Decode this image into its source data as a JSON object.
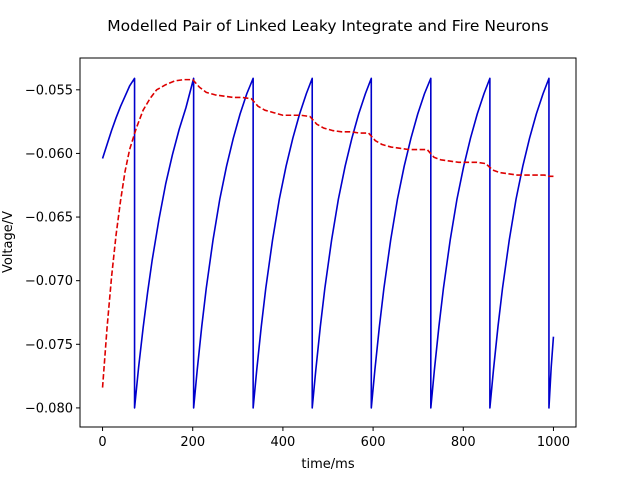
{
  "chart_data": {
    "type": "line",
    "title": "Modelled Pair of Linked Leaky Integrate and Fire Neurons",
    "xlabel": "time/ms",
    "ylabel": "Voltage/V",
    "xlim": [
      -50,
      1050
    ],
    "ylim": [
      -0.0815,
      -0.0525
    ],
    "xticks": [
      0,
      200,
      400,
      600,
      800,
      1000
    ],
    "xtick_labels": [
      "0",
      "200",
      "400",
      "600",
      "800",
      "1000"
    ],
    "yticks": [
      -0.08,
      -0.075,
      -0.07,
      -0.065,
      -0.06,
      -0.055
    ],
    "ytick_labels": [
      "−0.080",
      "−0.075",
      "−0.070",
      "−0.065",
      "−0.060",
      "−0.055"
    ],
    "grid": false,
    "legend": "none",
    "series": [
      {
        "color": "#0000cc",
        "style": "solid",
        "x": [
          0,
          10,
          20,
          30,
          40,
          50,
          60,
          71,
          71.01,
          80,
          90,
          100,
          110,
          125,
          140,
          155,
          170,
          185,
          202,
          202.01,
          210,
          220,
          230,
          245,
          260,
          275,
          290,
          305,
          320,
          334,
          334.01,
          342,
          352,
          362,
          377,
          392,
          407,
          422,
          437,
          452,
          465,
          465.01,
          473,
          483,
          493,
          508,
          523,
          538,
          553,
          568,
          583,
          596,
          596.01,
          604,
          614,
          624,
          639,
          654,
          669,
          684,
          699,
          714,
          728,
          728.01,
          736,
          746,
          756,
          771,
          786,
          801,
          816,
          831,
          846,
          859,
          859.01,
          867,
          877,
          887,
          902,
          917,
          932,
          947,
          962,
          977,
          990,
          990.01,
          995,
          1000
        ],
        "y": [
          -0.0604,
          -0.0593,
          -0.0582,
          -0.0572,
          -0.0563,
          -0.0555,
          -0.0547,
          -0.0541,
          -0.08,
          -0.0768,
          -0.0737,
          -0.0709,
          -0.0684,
          -0.0652,
          -0.0624,
          -0.0601,
          -0.0581,
          -0.0564,
          -0.0541,
          -0.08,
          -0.077,
          -0.0736,
          -0.0706,
          -0.0668,
          -0.0636,
          -0.061,
          -0.0588,
          -0.0569,
          -0.0553,
          -0.0541,
          -0.08,
          -0.077,
          -0.0736,
          -0.0706,
          -0.0668,
          -0.0636,
          -0.061,
          -0.0588,
          -0.0569,
          -0.0553,
          -0.0541,
          -0.08,
          -0.077,
          -0.0736,
          -0.0706,
          -0.0668,
          -0.0636,
          -0.061,
          -0.0588,
          -0.0569,
          -0.0553,
          -0.0541,
          -0.08,
          -0.077,
          -0.0736,
          -0.0706,
          -0.0668,
          -0.0636,
          -0.061,
          -0.0588,
          -0.0569,
          -0.0553,
          -0.0541,
          -0.08,
          -0.077,
          -0.0736,
          -0.0706,
          -0.0668,
          -0.0636,
          -0.061,
          -0.0588,
          -0.0569,
          -0.0553,
          -0.0541,
          -0.08,
          -0.077,
          -0.0736,
          -0.0706,
          -0.0668,
          -0.0636,
          -0.061,
          -0.0588,
          -0.0569,
          -0.0553,
          -0.0541,
          -0.08,
          -0.0768,
          -0.0744
        ]
      },
      {
        "color": "#dd0000",
        "style": "dashed",
        "x": [
          0,
          10,
          20,
          30,
          40,
          50,
          60,
          75,
          90,
          105,
          120,
          140,
          160,
          180,
          200,
          215,
          230,
          250,
          270,
          290,
          310,
          330,
          345,
          360,
          380,
          400,
          420,
          440,
          460,
          475,
          490,
          510,
          530,
          550,
          570,
          590,
          605,
          620,
          640,
          660,
          680,
          700,
          720,
          735,
          750,
          770,
          790,
          810,
          830,
          850,
          865,
          880,
          900,
          920,
          940,
          960,
          980,
          990,
          1000
        ],
        "y": [
          -0.0784,
          -0.0737,
          -0.0697,
          -0.0664,
          -0.0637,
          -0.0614,
          -0.0597,
          -0.058,
          -0.0566,
          -0.0557,
          -0.055,
          -0.0546,
          -0.0543,
          -0.0542,
          -0.0542,
          -0.0548,
          -0.0552,
          -0.0554,
          -0.0555,
          -0.0556,
          -0.0556,
          -0.0557,
          -0.0563,
          -0.0566,
          -0.0568,
          -0.057,
          -0.057,
          -0.057,
          -0.0571,
          -0.0577,
          -0.058,
          -0.0582,
          -0.0583,
          -0.0583,
          -0.0584,
          -0.0584,
          -0.059,
          -0.0593,
          -0.0595,
          -0.0596,
          -0.0597,
          -0.0597,
          -0.0597,
          -0.0603,
          -0.0605,
          -0.0606,
          -0.0607,
          -0.0607,
          -0.0607,
          -0.0608,
          -0.0613,
          -0.0615,
          -0.0616,
          -0.0617,
          -0.0617,
          -0.0617,
          -0.0617,
          -0.0618,
          -0.0618
        ]
      }
    ]
  }
}
